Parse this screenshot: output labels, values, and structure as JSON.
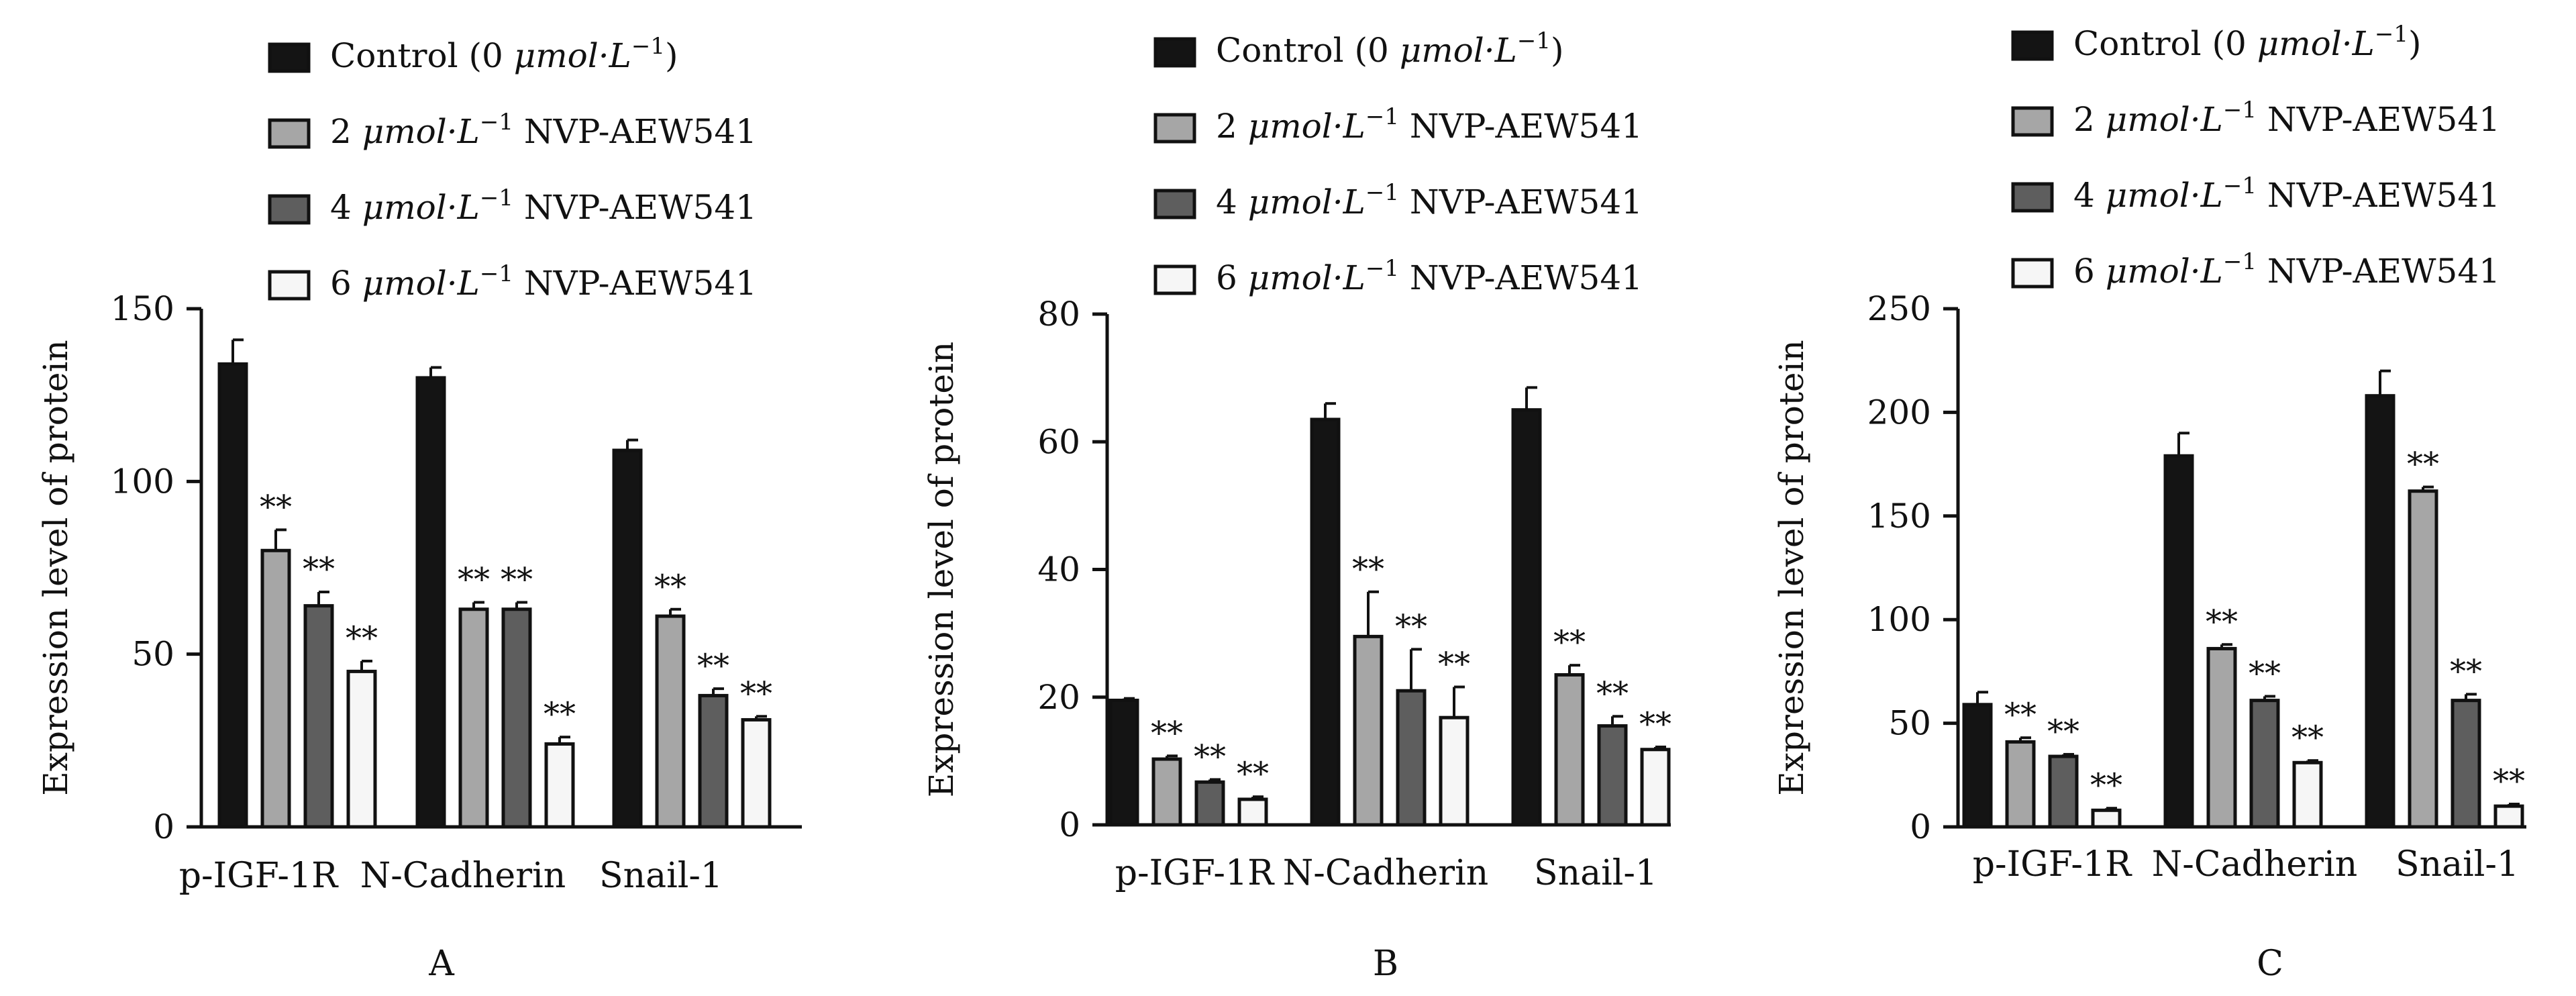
{
  "chart_data": [
    {
      "type": "bar",
      "panel_label": "A",
      "ylabel": "Expression level of protein",
      "ylim": [
        0,
        150
      ],
      "yticks": [
        "0",
        "50",
        "100",
        "150"
      ],
      "ytick_values": [
        0,
        50,
        100,
        150
      ],
      "categories": [
        "p-IGF-1R",
        "N-Cadherin",
        "Snail-1"
      ],
      "series": [
        {
          "name": "Control (0 μmol·L⁻¹)",
          "values": [
            134,
            130,
            109
          ],
          "errors": [
            7,
            3,
            3
          ]
        },
        {
          "name": "2 μmol·L⁻¹ NVP-AEW541",
          "values": [
            80,
            63,
            61
          ],
          "errors": [
            6,
            2,
            2
          ]
        },
        {
          "name": "4 μmol·L⁻¹ NVP-AEW541",
          "values": [
            64,
            63,
            38
          ],
          "errors": [
            4,
            2,
            2
          ]
        },
        {
          "name": "6 μmol·L⁻¹ NVP-AEW541",
          "values": [
            45,
            24,
            31
          ],
          "errors": [
            3,
            2,
            1
          ]
        }
      ],
      "annotations": [
        [
          "",
          "**",
          "**",
          "**"
        ],
        [
          "",
          "**",
          "**",
          "**"
        ],
        [
          "",
          "**",
          "**",
          "**"
        ]
      ]
    },
    {
      "type": "bar",
      "panel_label": "B",
      "ylabel": "Expression level of protein",
      "ylim": [
        0,
        80
      ],
      "yticks": [
        "0",
        "20",
        "40",
        "60",
        "80"
      ],
      "ytick_values": [
        0,
        20,
        40,
        60,
        80
      ],
      "categories": [
        "p-IGF-1R",
        "N-Cadherin",
        "Snail-1"
      ],
      "series": [
        {
          "name": "Control (0 μmol·L⁻¹)",
          "values": [
            19.5,
            63.5,
            65
          ],
          "errors": [
            0.3,
            2.5,
            3.5
          ]
        },
        {
          "name": "2 μmol·L⁻¹ NVP-AEW541",
          "values": [
            10.3,
            29.5,
            23.5
          ],
          "errors": [
            0.5,
            7,
            1.5
          ]
        },
        {
          "name": "4 μmol·L⁻¹ NVP-AEW541",
          "values": [
            6.7,
            21,
            15.5
          ],
          "errors": [
            0.4,
            6.5,
            1.5
          ]
        },
        {
          "name": "6 μmol·L⁻¹ NVP-AEW541",
          "values": [
            4,
            16.8,
            11.8
          ],
          "errors": [
            0.4,
            4.8,
            0.4
          ]
        }
      ],
      "annotations": [
        [
          "",
          "**",
          "**",
          "**"
        ],
        [
          "",
          "**",
          "**",
          "**"
        ],
        [
          "",
          "**",
          "**",
          "**"
        ]
      ]
    },
    {
      "type": "bar",
      "panel_label": "C",
      "ylabel": "Expression level of protein",
      "ylim": [
        0,
        250
      ],
      "yticks": [
        "0",
        "50",
        "100",
        "150",
        "200",
        "250"
      ],
      "ytick_values": [
        0,
        50,
        100,
        150,
        200,
        250
      ],
      "categories": [
        "p-IGF-1R",
        "N-Cadherin",
        "Snail-1"
      ],
      "series": [
        {
          "name": "Control (0 μmol·L⁻¹)",
          "values": [
            59,
            179,
            208
          ],
          "errors": [
            6,
            11,
            12
          ]
        },
        {
          "name": "2 μmol·L⁻¹ NVP-AEW541",
          "values": [
            41,
            86,
            162
          ],
          "errors": [
            2,
            2,
            2
          ]
        },
        {
          "name": "4 μmol·L⁻¹ NVP-AEW541",
          "values": [
            34,
            61,
            61
          ],
          "errors": [
            1,
            2,
            3
          ]
        },
        {
          "name": "6 μmol·L⁻¹ NVP-AEW541",
          "values": [
            8,
            31,
            10
          ],
          "errors": [
            1,
            1,
            1
          ]
        }
      ],
      "annotations": [
        [
          "",
          "**",
          "**",
          "**"
        ],
        [
          "",
          "**",
          "**",
          "**"
        ],
        [
          "",
          "**",
          "**",
          "**"
        ]
      ]
    }
  ],
  "legend": {
    "items": [
      {
        "prefix": "Control (0 ",
        "unit": "μmol·L",
        "sup": "−1",
        "suffix": ")"
      },
      {
        "prefix": "2 ",
        "unit": "μmol·L",
        "sup": "−1",
        "suffix": " NVP-AEW541"
      },
      {
        "prefix": "4 ",
        "unit": "μmol·L",
        "sup": "−1",
        "suffix": " NVP-AEW541"
      },
      {
        "prefix": "6 ",
        "unit": "μmol·L",
        "sup": "−1",
        "suffix": " NVP-AEW541"
      }
    ]
  },
  "colors": {
    "series": [
      "#141414",
      "#a6a6a6",
      "#5e5e5e",
      "#f6f6f6"
    ],
    "axis": "#111111"
  }
}
